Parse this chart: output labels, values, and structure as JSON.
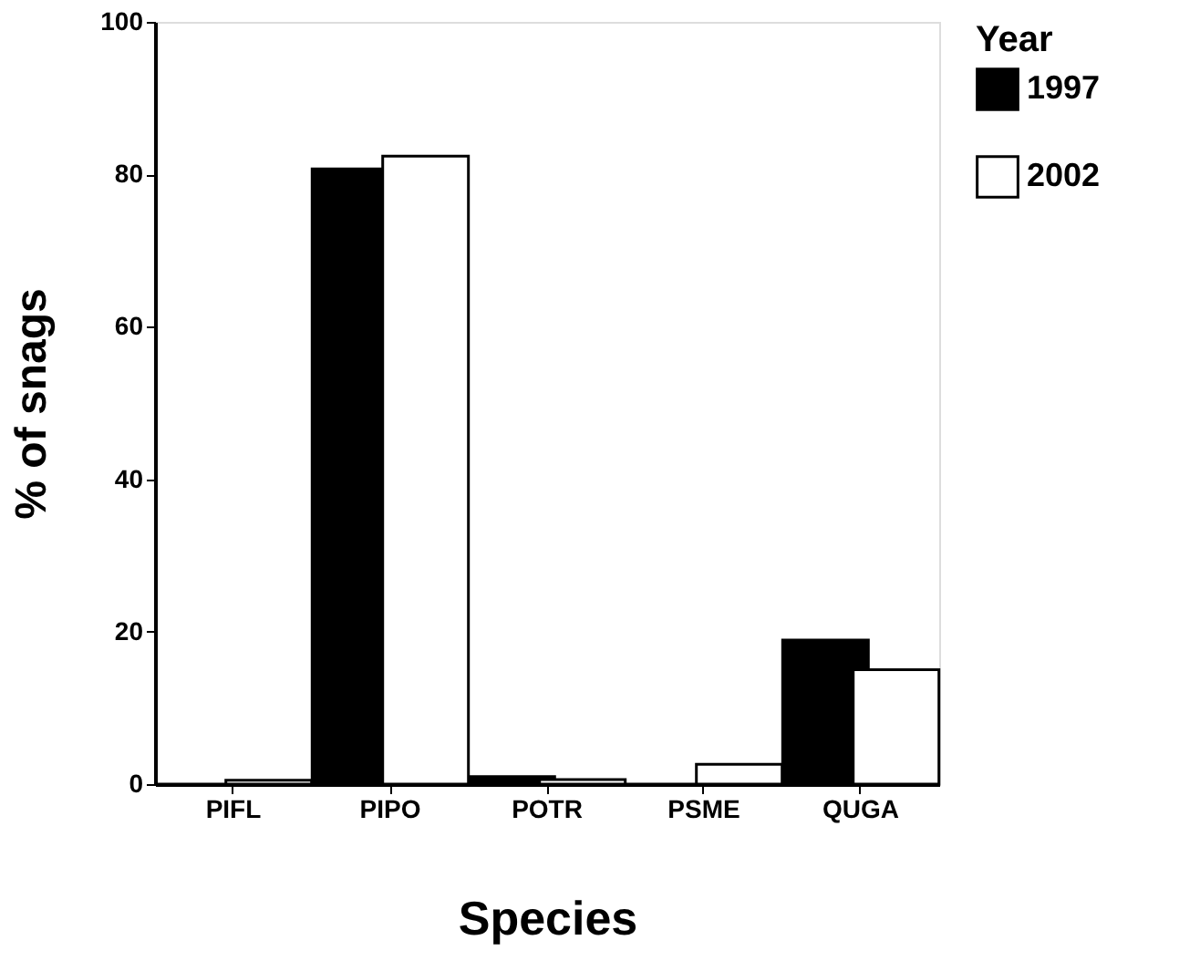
{
  "chart_data": {
    "type": "bar",
    "xlabel": "Species",
    "ylabel": "% of snags",
    "legend_title": "Year",
    "categories": [
      "PIFL",
      "PIPO",
      "POTR",
      "PSME",
      "QUGA"
    ],
    "series": [
      {
        "name": "1997",
        "color": "#000000",
        "values": [
          0,
          80.7,
          1,
          0,
          18.9
        ]
      },
      {
        "name": "2002",
        "color": "#ffffff",
        "values": [
          0.5,
          82.4,
          0.6,
          2.6,
          15
        ]
      }
    ],
    "ylim": [
      0,
      100
    ],
    "yticks": [
      0,
      20,
      40,
      60,
      80,
      100
    ],
    "grid": false,
    "legend": "right"
  }
}
